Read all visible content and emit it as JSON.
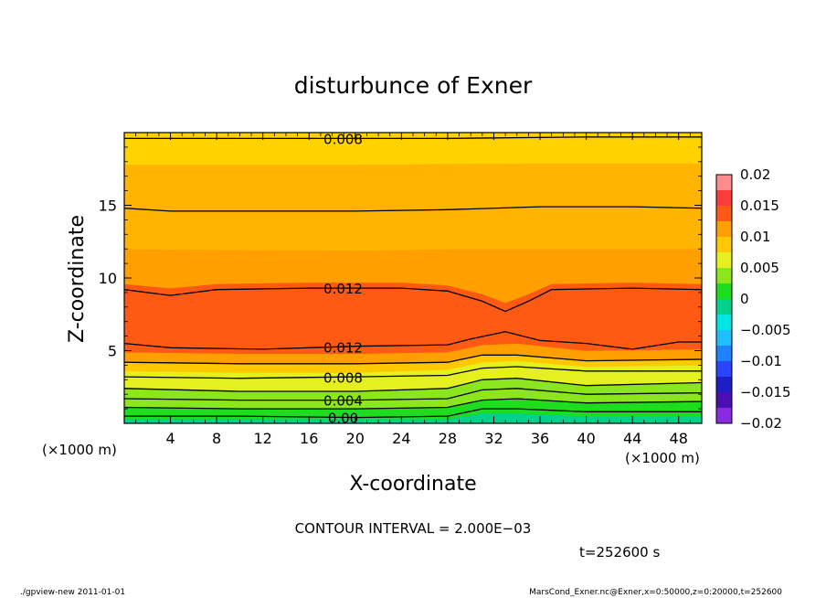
{
  "chart_data": {
    "type": "heatmap",
    "title": "disturbunce of Exner",
    "xlabel": "X-coordinate",
    "ylabel": "Z-coordinate",
    "x_unit": "(×1000 m)",
    "z_unit": "(×1000 m)",
    "xlim": [
      0,
      50
    ],
    "ylim": [
      0,
      20
    ],
    "x_ticks": [
      4,
      8,
      12,
      16,
      20,
      24,
      28,
      32,
      36,
      40,
      44,
      48
    ],
    "y_ticks": [
      5,
      10,
      15
    ],
    "grid": false,
    "colorbar": {
      "ticks": [
        {
          "value": 0.02,
          "label": "0.02"
        },
        {
          "value": 0.015,
          "label": "0.015"
        },
        {
          "value": 0.01,
          "label": "0.01"
        },
        {
          "value": 0.005,
          "label": "0.005"
        },
        {
          "value": 0,
          "label": "0"
        },
        {
          "value": -0.005,
          "label": "−0.005"
        },
        {
          "value": -0.01,
          "label": "−0.01"
        },
        {
          "value": -0.015,
          "label": "−0.015"
        },
        {
          "value": -0.02,
          "label": "−0.02"
        }
      ],
      "levels": [
        {
          "lo": -0.02,
          "hi": -0.0175,
          "color": "#8a2be2"
        },
        {
          "lo": -0.0175,
          "hi": -0.015,
          "color": "#4b0fb4"
        },
        {
          "lo": -0.015,
          "hi": -0.0125,
          "color": "#1e1ec8"
        },
        {
          "lo": -0.0125,
          "hi": -0.01,
          "color": "#2846ff"
        },
        {
          "lo": -0.01,
          "hi": -0.0075,
          "color": "#1e82ff"
        },
        {
          "lo": -0.0075,
          "hi": -0.005,
          "color": "#1ebeff"
        },
        {
          "lo": -0.005,
          "hi": -0.0025,
          "color": "#00e6e6"
        },
        {
          "lo": -0.0025,
          "hi": 0,
          "color": "#00d28c"
        },
        {
          "lo": 0,
          "hi": 0.0025,
          "color": "#1edc1e"
        },
        {
          "lo": 0.0025,
          "hi": 0.005,
          "color": "#8ce61e"
        },
        {
          "lo": 0.005,
          "hi": 0.0075,
          "color": "#e6f01e"
        },
        {
          "lo": 0.0075,
          "hi": 0.01,
          "color": "#ffc800"
        },
        {
          "lo": 0.01,
          "hi": 0.0125,
          "color": "#ffa000"
        },
        {
          "lo": 0.0125,
          "hi": 0.015,
          "color": "#ff5a14"
        },
        {
          "lo": 0.015,
          "hi": 0.0175,
          "color": "#ff3c3c"
        },
        {
          "lo": 0.0175,
          "hi": 0.02,
          "color": "#ff8c8c"
        }
      ]
    },
    "contours": [
      {
        "level": 0.0,
        "label": "0.00",
        "label_x": 18,
        "points": [
          [
            0,
            0.5
          ],
          [
            10,
            0.5
          ],
          [
            20,
            0.4
          ],
          [
            28,
            0.5
          ],
          [
            31,
            1.0
          ],
          [
            34,
            1.0
          ],
          [
            40,
            0.8
          ],
          [
            50,
            0.8
          ]
        ]
      },
      {
        "level": 0.002,
        "label": "",
        "points": [
          [
            0,
            1.1
          ],
          [
            10,
            1.0
          ],
          [
            20,
            1.0
          ],
          [
            28,
            1.1
          ],
          [
            31,
            1.6
          ],
          [
            34,
            1.7
          ],
          [
            40,
            1.4
          ],
          [
            50,
            1.5
          ]
        ]
      },
      {
        "level": 0.004,
        "label": "0.004",
        "label_x": 18,
        "points": [
          [
            0,
            1.7
          ],
          [
            10,
            1.6
          ],
          [
            20,
            1.6
          ],
          [
            28,
            1.7
          ],
          [
            31,
            2.3
          ],
          [
            34,
            2.4
          ],
          [
            40,
            2.0
          ],
          [
            50,
            2.1
          ]
        ]
      },
      {
        "level": 0.006,
        "label": "",
        "points": [
          [
            0,
            2.4
          ],
          [
            10,
            2.2
          ],
          [
            20,
            2.2
          ],
          [
            28,
            2.4
          ],
          [
            31,
            3.0
          ],
          [
            34,
            3.1
          ],
          [
            40,
            2.6
          ],
          [
            50,
            2.8
          ]
        ]
      },
      {
        "level": 0.008,
        "label": "0.008",
        "label_x": 18,
        "points": [
          [
            0,
            3.2
          ],
          [
            10,
            3.1
          ],
          [
            20,
            3.2
          ],
          [
            28,
            3.3
          ],
          [
            31,
            3.8
          ],
          [
            34,
            3.9
          ],
          [
            40,
            3.6
          ],
          [
            50,
            3.6
          ]
        ]
      },
      {
        "level": 0.01,
        "label": "",
        "points": [
          [
            0,
            4.2
          ],
          [
            10,
            4.1
          ],
          [
            20,
            4.1
          ],
          [
            28,
            4.2
          ],
          [
            31,
            4.7
          ],
          [
            34,
            4.7
          ],
          [
            40,
            4.3
          ],
          [
            50,
            4.4
          ]
        ]
      },
      {
        "level": 0.012,
        "label": "0.012",
        "label_x": 18,
        "points": [
          [
            0,
            5.5
          ],
          [
            4,
            5.2
          ],
          [
            12,
            5.1
          ],
          [
            20,
            5.3
          ],
          [
            28,
            5.4
          ],
          [
            30,
            5.8
          ],
          [
            33,
            6.3
          ],
          [
            36,
            5.7
          ],
          [
            40,
            5.5
          ],
          [
            44,
            5.1
          ],
          [
            48,
            5.6
          ],
          [
            50,
            5.6
          ]
        ]
      },
      {
        "level": 0.012,
        "label": "0.012",
        "label_x": 18,
        "points": [
          [
            0,
            9.2
          ],
          [
            4,
            8.8
          ],
          [
            8,
            9.2
          ],
          [
            16,
            9.3
          ],
          [
            24,
            9.3
          ],
          [
            28,
            9.1
          ],
          [
            31,
            8.4
          ],
          [
            33,
            7.7
          ],
          [
            35,
            8.4
          ],
          [
            37,
            9.2
          ],
          [
            44,
            9.3
          ],
          [
            50,
            9.2
          ]
        ]
      },
      {
        "level": 0.01,
        "label": "",
        "points": [
          [
            0,
            14.8
          ],
          [
            4,
            14.6
          ],
          [
            20,
            14.6
          ],
          [
            28,
            14.7
          ],
          [
            36,
            14.9
          ],
          [
            44,
            14.9
          ],
          [
            50,
            14.8
          ]
        ]
      },
      {
        "level": 0.008,
        "label": "0.008",
        "label_x": 18,
        "points": [
          [
            0,
            19.6
          ],
          [
            16,
            19.6
          ],
          [
            28,
            19.6
          ],
          [
            40,
            19.7
          ],
          [
            50,
            19.7
          ]
        ]
      }
    ],
    "bands": [
      {
        "color": "#00d28c",
        "lower": [
          [
            0,
            0
          ],
          [
            50,
            0
          ]
        ],
        "upper": [
          [
            0,
            0.3
          ],
          [
            10,
            0.3
          ],
          [
            20,
            0.3
          ],
          [
            28,
            0.3
          ],
          [
            31,
            0.7
          ],
          [
            34,
            0.7
          ],
          [
            40,
            0.5
          ],
          [
            50,
            0.5
          ]
        ]
      },
      {
        "color": "#1edc1e",
        "lower": [
          [
            0,
            0.3
          ],
          [
            10,
            0.3
          ],
          [
            20,
            0.3
          ],
          [
            28,
            0.3
          ],
          [
            31,
            0.7
          ],
          [
            34,
            0.7
          ],
          [
            40,
            0.5
          ],
          [
            50,
            0.5
          ]
        ],
        "upper": [
          [
            0,
            1.1
          ],
          [
            10,
            1.0
          ],
          [
            20,
            1.0
          ],
          [
            28,
            1.1
          ],
          [
            31,
            1.6
          ],
          [
            34,
            1.7
          ],
          [
            40,
            1.4
          ],
          [
            50,
            1.5
          ]
        ]
      },
      {
        "color": "#8ce61e",
        "lower": [
          [
            0,
            1.1
          ],
          [
            10,
            1.0
          ],
          [
            20,
            1.0
          ],
          [
            28,
            1.1
          ],
          [
            31,
            1.6
          ],
          [
            34,
            1.7
          ],
          [
            40,
            1.4
          ],
          [
            50,
            1.5
          ]
        ],
        "upper": [
          [
            0,
            2.4
          ],
          [
            10,
            2.2
          ],
          [
            20,
            2.2
          ],
          [
            28,
            2.4
          ],
          [
            31,
            3.0
          ],
          [
            34,
            3.1
          ],
          [
            40,
            2.6
          ],
          [
            50,
            2.8
          ]
        ]
      },
      {
        "color": "#e6f01e",
        "lower": [
          [
            0,
            2.4
          ],
          [
            10,
            2.2
          ],
          [
            20,
            2.2
          ],
          [
            28,
            2.4
          ],
          [
            31,
            3.0
          ],
          [
            34,
            3.1
          ],
          [
            40,
            2.6
          ],
          [
            50,
            2.8
          ]
        ],
        "upper": [
          [
            0,
            3.6
          ],
          [
            10,
            3.5
          ],
          [
            20,
            3.5
          ],
          [
            28,
            3.7
          ],
          [
            31,
            4.2
          ],
          [
            34,
            4.3
          ],
          [
            40,
            3.9
          ],
          [
            50,
            4.0
          ]
        ]
      },
      {
        "color": "#ffc800",
        "lower": [
          [
            0,
            3.6
          ],
          [
            10,
            3.5
          ],
          [
            20,
            3.5
          ],
          [
            28,
            3.7
          ],
          [
            31,
            4.2
          ],
          [
            34,
            4.3
          ],
          [
            40,
            3.9
          ],
          [
            50,
            4.0
          ]
        ],
        "upper": [
          [
            0,
            4.2
          ],
          [
            10,
            4.1
          ],
          [
            20,
            4.1
          ],
          [
            28,
            4.2
          ],
          [
            31,
            4.7
          ],
          [
            34,
            4.7
          ],
          [
            40,
            4.3
          ],
          [
            50,
            4.4
          ]
        ]
      },
      {
        "color": "#ffa000",
        "lower": [
          [
            0,
            4.2
          ],
          [
            10,
            4.1
          ],
          [
            20,
            4.1
          ],
          [
            28,
            4.2
          ],
          [
            31,
            4.7
          ],
          [
            34,
            4.7
          ],
          [
            40,
            4.3
          ],
          [
            50,
            4.4
          ]
        ],
        "upper": [
          [
            0,
            4.9
          ],
          [
            10,
            4.8
          ],
          [
            20,
            4.8
          ],
          [
            28,
            4.9
          ],
          [
            31,
            5.4
          ],
          [
            34,
            5.5
          ],
          [
            40,
            5.0
          ],
          [
            50,
            5.1
          ]
        ]
      },
      {
        "color": "#ff5a14",
        "lower": [
          [
            0,
            4.9
          ],
          [
            10,
            4.8
          ],
          [
            20,
            4.8
          ],
          [
            28,
            4.9
          ],
          [
            31,
            5.4
          ],
          [
            34,
            5.5
          ],
          [
            40,
            5.0
          ],
          [
            50,
            5.1
          ]
        ],
        "upper": [
          [
            0,
            9.6
          ],
          [
            4,
            9.3
          ],
          [
            8,
            9.6
          ],
          [
            16,
            9.7
          ],
          [
            24,
            9.7
          ],
          [
            28,
            9.5
          ],
          [
            31,
            8.9
          ],
          [
            33,
            8.3
          ],
          [
            35,
            8.9
          ],
          [
            37,
            9.6
          ],
          [
            44,
            9.7
          ],
          [
            50,
            9.6
          ]
        ]
      },
      {
        "color": "#ffa000",
        "lower": [
          [
            0,
            9.6
          ],
          [
            4,
            9.3
          ],
          [
            8,
            9.6
          ],
          [
            16,
            9.7
          ],
          [
            24,
            9.7
          ],
          [
            28,
            9.5
          ],
          [
            31,
            8.9
          ],
          [
            33,
            8.3
          ],
          [
            35,
            8.9
          ],
          [
            37,
            9.6
          ],
          [
            44,
            9.7
          ],
          [
            50,
            9.6
          ]
        ],
        "upper": [
          [
            0,
            12.0
          ],
          [
            20,
            11.9
          ],
          [
            28,
            12.0
          ],
          [
            36,
            12.0
          ],
          [
            50,
            12.0
          ]
        ]
      },
      {
        "color": "#ffb400",
        "lower": [
          [
            0,
            12.0
          ],
          [
            20,
            11.9
          ],
          [
            28,
            12.0
          ],
          [
            36,
            12.0
          ],
          [
            50,
            12.0
          ]
        ],
        "upper": [
          [
            0,
            17.8
          ],
          [
            20,
            17.8
          ],
          [
            36,
            17.9
          ],
          [
            50,
            17.9
          ]
        ]
      },
      {
        "color": "#ffd200",
        "lower": [
          [
            0,
            17.8
          ],
          [
            20,
            17.8
          ],
          [
            36,
            17.9
          ],
          [
            50,
            17.9
          ]
        ],
        "upper": [
          [
            0,
            20
          ],
          [
            50,
            20
          ]
        ]
      }
    ]
  },
  "annotations": {
    "contour_interval": "CONTOUR INTERVAL = 2.000E−03",
    "time_label": "t=252600  s",
    "footer_left": "./gpview-new   2011-01-01",
    "footer_right": "MarsCond_Exner.nc@Exner,x=0:50000,z=0:20000,t=252600"
  }
}
